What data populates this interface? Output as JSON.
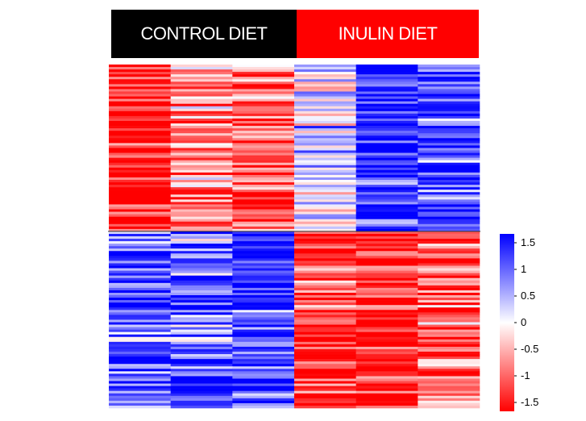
{
  "chart_data": {
    "type": "heatmap",
    "groups": [
      {
        "label": "CONTROL DIET",
        "color": "#000000",
        "columns": 3
      },
      {
        "label": "INULIN DIET",
        "color": "#ff0000",
        "columns": 3
      }
    ],
    "n_rows": 140,
    "clusters": [
      {
        "rows": 68,
        "column_means": [
          -1.4,
          -0.6,
          -0.9,
          0.2,
          1.3,
          1.0
        ]
      },
      {
        "rows": 72,
        "column_means": [
          1.0,
          0.9,
          1.2,
          -1.2,
          -1.4,
          -0.9
        ]
      }
    ],
    "colorscale": {
      "low": "#ff0000",
      "mid": "#ffffff",
      "high": "#0000ff",
      "min": -1.5,
      "max": 1.5
    },
    "colorbar_ticks": [
      "1.5",
      "1",
      "0.5",
      "0",
      "-0.5",
      "-1",
      "-1.5"
    ],
    "colorbar_tick_values": [
      1.5,
      1,
      0.5,
      0,
      -0.5,
      -1,
      -1.5
    ]
  }
}
